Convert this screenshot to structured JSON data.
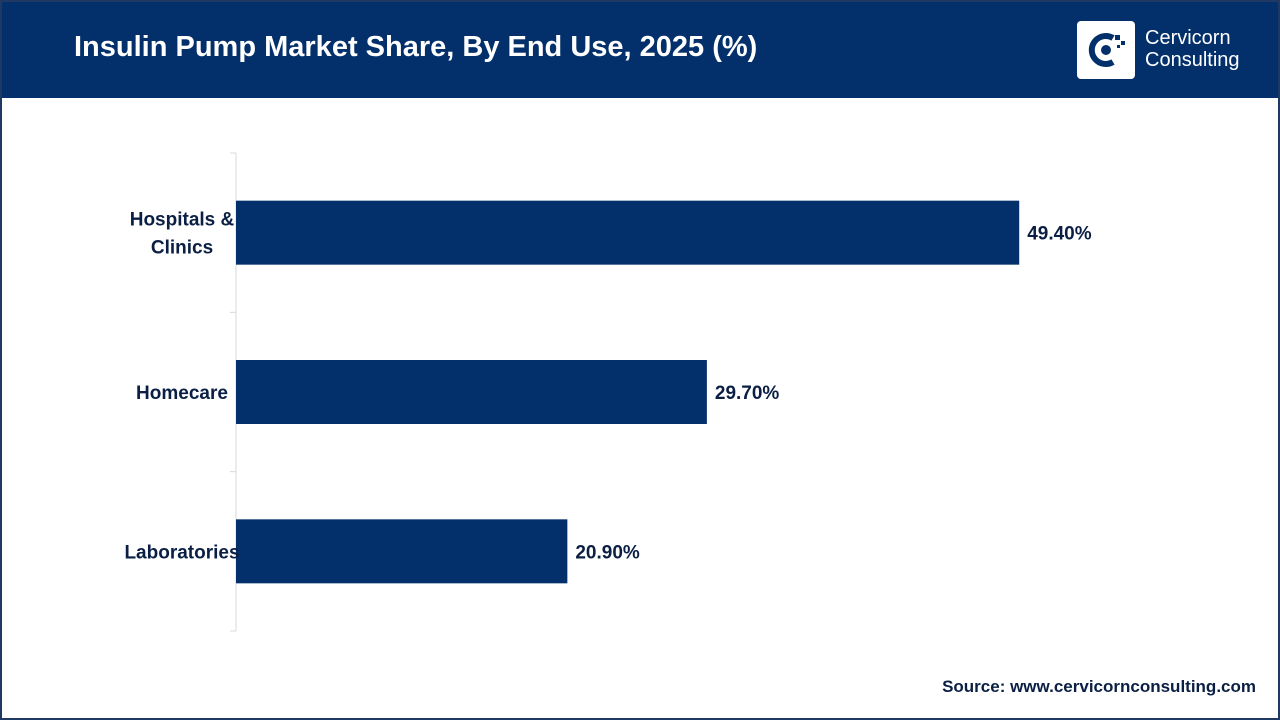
{
  "header": {
    "title": "Insulin Pump Market Share, By End Use, 2025 (%)",
    "logo_line1": "Cervicorn",
    "logo_line2": "Consulting"
  },
  "colors": {
    "header_bg": "#03306b",
    "bar": "#03306b",
    "text": "#0b1f44"
  },
  "chart_data": {
    "type": "bar",
    "orientation": "horizontal",
    "title": "Insulin Pump Market Share, By End Use, 2025 (%)",
    "categories": [
      [
        "Hospitals &",
        "Clinics"
      ],
      [
        "Homecare"
      ],
      [
        "Laboratories"
      ]
    ],
    "values": [
      49.4,
      29.7,
      20.9
    ],
    "value_labels": [
      "49.40%",
      "29.70%",
      "20.90%"
    ],
    "xlim": [
      0,
      55
    ],
    "grid": false,
    "legend": "none"
  },
  "footer": {
    "source": "Source: www.cervicornconsulting.com"
  }
}
